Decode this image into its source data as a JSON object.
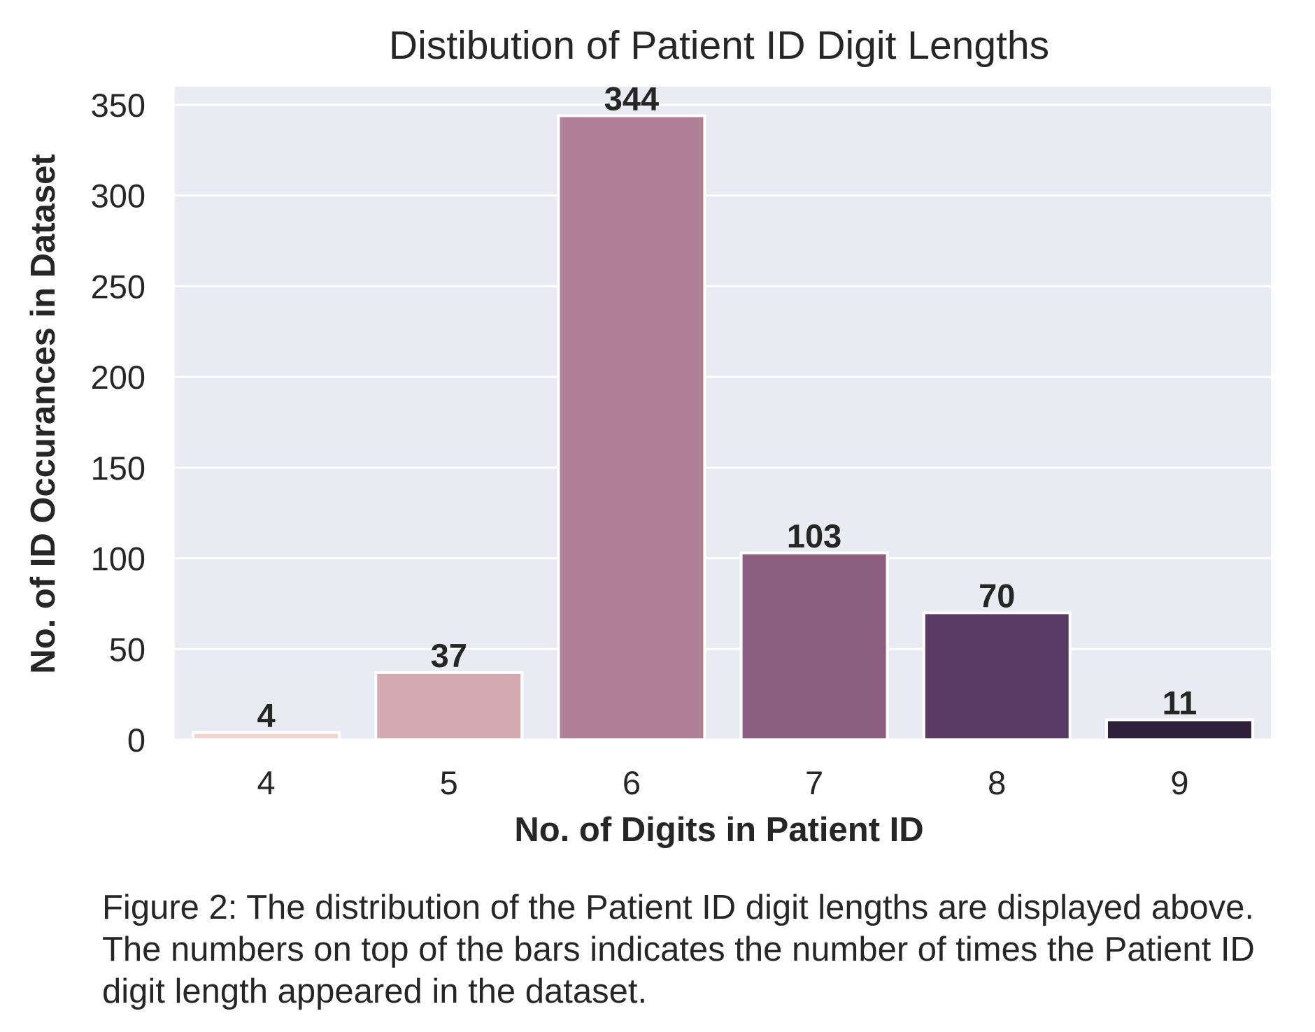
{
  "chart_data": {
    "type": "bar",
    "title": "Distibution of Patient ID Digit Lengths",
    "xlabel": "No. of Digits in Patient ID",
    "ylabel": "No. of ID Occurances in Dataset",
    "categories": [
      "4",
      "5",
      "6",
      "7",
      "8",
      "9"
    ],
    "values": [
      4,
      37,
      344,
      103,
      70,
      11
    ],
    "data_labels": [
      "4",
      "37",
      "344",
      "103",
      "70",
      "11"
    ],
    "yticks": [
      "0",
      "50",
      "100",
      "150",
      "200",
      "250",
      "300",
      "350"
    ],
    "ylim": [
      0,
      360
    ],
    "grid": true,
    "colors": [
      "#efd4cf",
      "#d4a9b0",
      "#b18096",
      "#8b5d7f",
      "#5b3b63",
      "#2e1f38"
    ],
    "background": "#eaeaf2"
  },
  "caption": "Figure 2: The distribution of the Patient ID digit lengths are displayed above. The numbers on top of the bars indicates the number of times the Patient ID digit length appeared in the dataset."
}
